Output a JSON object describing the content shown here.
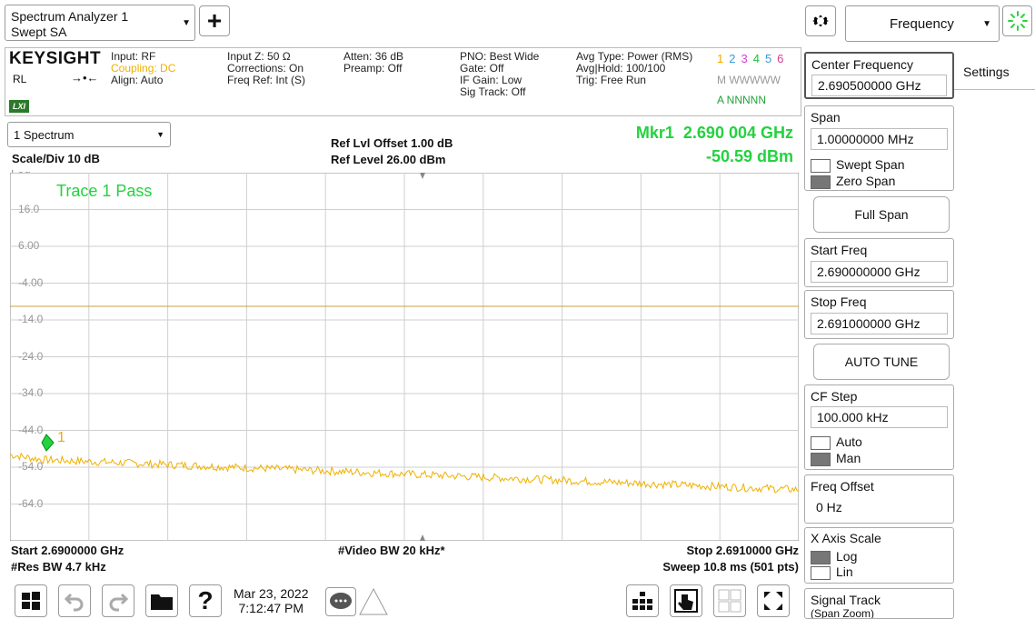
{
  "window": {
    "title": "Spectrum Analyzer 1",
    "mode": "Swept SA"
  },
  "top_right": {
    "menu_label": "Frequency"
  },
  "brand": {
    "name": "KEYSIGHT",
    "rl": "RL",
    "lxi": "LXI"
  },
  "info": {
    "col1": [
      "Input: RF",
      "Coupling: DC",
      "Align: Auto"
    ],
    "col2": [
      "Input Z: 50 Ω",
      "Corrections: On",
      "Freq Ref: Int (S)"
    ],
    "col3": [
      "Atten: 36 dB",
      "Preamp: Off"
    ],
    "col4": [
      "PNO: Best Wide",
      "Gate: Off",
      "IF Gain: Low",
      "Sig Track: Off"
    ],
    "col5": [
      "Avg Type: Power (RMS)",
      "Avg|Hold: 100/100",
      "Trig: Free Run"
    ],
    "trace_nums": [
      "1",
      "2",
      "3",
      "4",
      "5",
      "6"
    ],
    "trace_m_row": "M WWWWW",
    "trace_a_row": "A NNNNN"
  },
  "trace_colors": [
    "#f0a800",
    "#3a9bd9",
    "#d23fd2",
    "#23c03c",
    "#3a9bd9",
    "#d23f8c"
  ],
  "plot": {
    "view_select": "1 Spectrum",
    "scale": "Scale/Div 10 dB",
    "log": "Log",
    "ref_offset": "Ref Lvl Offset 1.00 dB",
    "ref_level": "Ref Level 26.00 dBm",
    "marker_freq": "Mkr1  2.690 004 GHz",
    "marker_level": "-50.59 dBm",
    "trace_label": "Trace 1 Pass",
    "marker_num": "1",
    "y_ticks": [
      "16.0",
      "6.00",
      "-4.00",
      "-14.0",
      "-24.0",
      "-34.0",
      "-44.0",
      "-54.0",
      "-64.0"
    ],
    "start": "Start 2.6900000 GHz",
    "res_bw": "#Res BW 4.7 kHz",
    "video_bw": "#Video BW 20 kHz*",
    "stop": "Stop 2.6910000 GHz",
    "sweep": "Sweep 10.8 ms (501 pts)"
  },
  "right_panel": {
    "center_title": "Center Frequency",
    "center_value": "2.690500000 GHz",
    "settings_tab": "Settings",
    "span_title": "Span",
    "span_value": "1.00000000 MHz",
    "swept_span": "Swept Span",
    "zero_span": "Zero Span",
    "full_span": "Full Span",
    "start_title": "Start Freq",
    "start_value": "2.690000000 GHz",
    "stop_title": "Stop Freq",
    "stop_value": "2.691000000 GHz",
    "auto_tune": "AUTO TUNE",
    "cf_title": "CF Step",
    "cf_value": "100.000 kHz",
    "cf_auto": "Auto",
    "cf_man": "Man",
    "offset_title": "Freq Offset",
    "offset_value": "0 Hz",
    "xaxis_title": "X Axis Scale",
    "xaxis_log": "Log",
    "xaxis_lin": "Lin",
    "signal_title": "Signal Track",
    "signal_sub": "(Span Zoom)"
  },
  "bottom": {
    "date": "Mar 23, 2022",
    "time": "7:12:47 PM"
  }
}
